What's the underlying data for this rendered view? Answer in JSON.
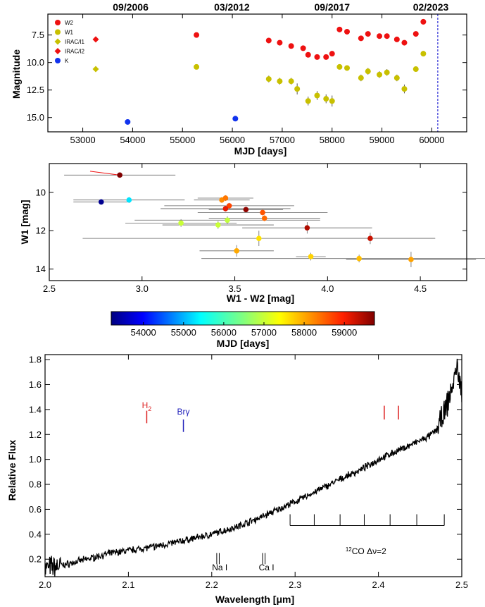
{
  "chart_data": [
    {
      "type": "scatter",
      "xlabel": "MJD [days]",
      "ylabel": "Magnitude",
      "xlim": [
        52300,
        60700
      ],
      "ylim": [
        16.3,
        5.6
      ],
      "y_inverted": true,
      "xticks": [
        53000,
        54000,
        55000,
        56000,
        57000,
        58000,
        59000,
        60000
      ],
      "yticks": [
        7.5,
        10.0,
        12.5,
        15.0
      ],
      "top_labels": [
        {
          "x": 53960,
          "label": "09/2006"
        },
        {
          "x": 55990,
          "label": "03/2012"
        },
        {
          "x": 58000,
          "label": "09/2017"
        },
        {
          "x": 59980,
          "label": "02/2023"
        }
      ],
      "vline": {
        "x": 60120,
        "color": "#0000cc",
        "style": "dashed"
      },
      "legend": [
        {
          "label": "W2",
          "color": "#ee1111",
          "marker": "circle"
        },
        {
          "label": "W1",
          "color": "#c8c000",
          "marker": "circle"
        },
        {
          "label": "IRAC/I1",
          "color": "#c8c000",
          "marker": "diamond"
        },
        {
          "label": "IRAC/I2",
          "color": "#ee1111",
          "marker": "diamond"
        },
        {
          "label": "K",
          "color": "#1133ee",
          "marker": "circle"
        }
      ],
      "series": [
        {
          "name": "W2",
          "color": "#ee1111",
          "marker": "circle",
          "x": [
            55280,
            56730,
            56950,
            57180,
            57420,
            57520,
            57700,
            57880,
            58000,
            58150,
            58300,
            58580,
            58720,
            58950,
            59100,
            59300,
            59450,
            59680,
            59830
          ],
          "y": [
            7.5,
            8.0,
            8.2,
            8.5,
            8.7,
            9.3,
            9.5,
            9.5,
            9.2,
            7.0,
            7.2,
            7.8,
            7.4,
            7.6,
            7.6,
            7.9,
            8.2,
            7.4,
            6.3
          ]
        },
        {
          "name": "W1",
          "color": "#c8c000",
          "marker": "circle",
          "x": [
            55280,
            56730,
            56950,
            57180,
            57300,
            57520,
            57700,
            57880,
            58000,
            58150,
            58300,
            58580,
            58720,
            58950,
            59100,
            59300,
            59450,
            59680,
            59830
          ],
          "y": [
            10.4,
            11.5,
            11.7,
            11.7,
            12.4,
            13.5,
            13.0,
            13.3,
            13.5,
            10.4,
            10.5,
            11.4,
            10.8,
            11.1,
            10.9,
            11.4,
            12.4,
            10.6,
            9.2
          ],
          "yerr": [
            0.2,
            0.3,
            0.3,
            0.3,
            0.5,
            0.4,
            0.4,
            0.4,
            0.5,
            0.2,
            0.2,
            0.3,
            0.3,
            0.3,
            0.3,
            0.3,
            0.4,
            0.2,
            0.2
          ]
        },
        {
          "name": "IRAC/I1",
          "color": "#c8c000",
          "marker": "diamond",
          "x": [
            53260
          ],
          "y": [
            10.6
          ]
        },
        {
          "name": "IRAC/I2",
          "color": "#ee1111",
          "marker": "diamond",
          "x": [
            53260
          ],
          "y": [
            7.9
          ]
        },
        {
          "name": "K",
          "color": "#1133ee",
          "marker": "circle",
          "x": [
            53900,
            56060
          ],
          "y": [
            15.4,
            15.1
          ]
        }
      ]
    },
    {
      "type": "scatter",
      "xlabel": "W1 - W2 [mag]",
      "ylabel": "W1 [mag]",
      "xlim": [
        2.5,
        4.75
      ],
      "ylim": [
        14.6,
        8.5
      ],
      "y_inverted": true,
      "xticks": [
        2.5,
        3.0,
        3.5,
        4.0,
        4.5
      ],
      "yticks": [
        10,
        12,
        14
      ],
      "colorbar": {
        "label": "MJD [days]",
        "range": [
          53200,
          59750
        ],
        "ticks": [
          54000,
          55000,
          56000,
          57000,
          58000,
          59000
        ]
      },
      "points": [
        {
          "x": 2.78,
          "y": 10.5,
          "xerr": 0.15,
          "yerr": 0.15,
          "mjd": 53300
        },
        {
          "x": 2.88,
          "y": 9.1,
          "xerr": 0.3,
          "yerr": 0.1,
          "mjd": 59830,
          "arrow_to": [
            2.72,
            8.9
          ]
        },
        {
          "x": 2.93,
          "y": 10.4,
          "xerr": 0.3,
          "yerr": 0.15,
          "mjd": 55280
        },
        {
          "x": 3.21,
          "y": 11.6,
          "xerr": 0.3,
          "yerr": 0.2,
          "mjd": 57000
        },
        {
          "x": 3.41,
          "y": 11.7,
          "xerr": 0.3,
          "yerr": 0.2,
          "mjd": 57000
        },
        {
          "x": 3.46,
          "y": 11.45,
          "xerr": 0.5,
          "yerr": 0.2,
          "mjd": 56950
        },
        {
          "x": 3.43,
          "y": 10.4,
          "xerr": 0.15,
          "yerr": 0.15,
          "mjd": 58200
        },
        {
          "x": 3.45,
          "y": 10.3,
          "xerr": 0.15,
          "yerr": 0.15,
          "mjd": 58350
        },
        {
          "x": 3.47,
          "y": 10.7,
          "xerr": 0.35,
          "yerr": 0.15,
          "mjd": 58700
        },
        {
          "x": 3.45,
          "y": 10.85,
          "xerr": 0.35,
          "yerr": 0.15,
          "mjd": 59120
        },
        {
          "x": 3.56,
          "y": 10.9,
          "xerr": 0.2,
          "yerr": 0.15,
          "mjd": 59650
        },
        {
          "x": 3.65,
          "y": 11.05,
          "xerr": 0.35,
          "yerr": 0.15,
          "mjd": 58600
        },
        {
          "x": 3.66,
          "y": 11.35,
          "xerr": 0.3,
          "yerr": 0.15,
          "mjd": 58450
        },
        {
          "x": 3.51,
          "y": 13.05,
          "xerr": 0.2,
          "yerr": 0.3,
          "mjd": 58000
        },
        {
          "x": 3.63,
          "y": 12.4,
          "xerr": 0.95,
          "yerr": 0.4,
          "mjd": 57600
        },
        {
          "x": 3.89,
          "y": 11.85,
          "xerr": 0.35,
          "yerr": 0.3,
          "mjd": 59450
        },
        {
          "x": 3.91,
          "y": 13.35,
          "xerr": 0.08,
          "yerr": 0.2,
          "mjd": 57700
        },
        {
          "x": 4.17,
          "y": 13.45,
          "xerr": 0.85,
          "yerr": 0.2,
          "mjd": 57850
        },
        {
          "x": 4.23,
          "y": 12.4,
          "xerr": 0.35,
          "yerr": 0.3,
          "mjd": 59300
        },
        {
          "x": 4.45,
          "y": 13.5,
          "xerr": 0.35,
          "yerr": 0.4,
          "mjd": 58050
        }
      ]
    },
    {
      "type": "line",
      "xlabel": "Wavelength [μm]",
      "ylabel": "Relative Flux",
      "xlim": [
        2.0,
        2.5
      ],
      "ylim": [
        0.06,
        1.84
      ],
      "xticks": [
        2.0,
        2.1,
        2.2,
        2.3,
        2.4,
        2.5
      ],
      "yticks": [
        0.2,
        0.4,
        0.6,
        0.8,
        1.0,
        1.2,
        1.4,
        1.6,
        1.8
      ],
      "spectrum_anchors": {
        "x": [
          2.0,
          2.02,
          2.05,
          2.08,
          2.1,
          2.13,
          2.16,
          2.2,
          2.23,
          2.26,
          2.28,
          2.3,
          2.33,
          2.36,
          2.38,
          2.4,
          2.42,
          2.44,
          2.46,
          2.47,
          2.48,
          2.49,
          2.495,
          2.5
        ],
        "y": [
          0.13,
          0.15,
          0.2,
          0.25,
          0.27,
          0.3,
          0.34,
          0.4,
          0.46,
          0.54,
          0.6,
          0.66,
          0.76,
          0.86,
          0.92,
          1.0,
          1.06,
          1.12,
          1.18,
          1.24,
          1.38,
          1.62,
          1.75,
          1.5
        ]
      },
      "annotations": [
        {
          "label": "H2",
          "color": "#dd2222",
          "x": 2.122,
          "y": 1.41
        },
        {
          "label": "Brγ",
          "color": "#2222bb",
          "x": 2.166,
          "y": 1.36
        },
        {
          "label": "Na I",
          "color": "#000000",
          "x": 2.208,
          "y": 0.11
        },
        {
          "label": "Ca I",
          "color": "#000000",
          "x": 2.264,
          "y": 0.11
        },
        {
          "label": "12CO Δν=2",
          "color": "#000000",
          "x": 2.385,
          "y": 0.24
        }
      ],
      "red_markers": [
        2.407,
        2.424
      ],
      "co_bandheads": [
        2.294,
        2.323,
        2.354,
        2.383,
        2.414,
        2.446,
        2.479
      ],
      "na_lines": [
        2.206,
        2.209
      ],
      "ca_lines": [
        2.261,
        2.264
      ]
    }
  ]
}
